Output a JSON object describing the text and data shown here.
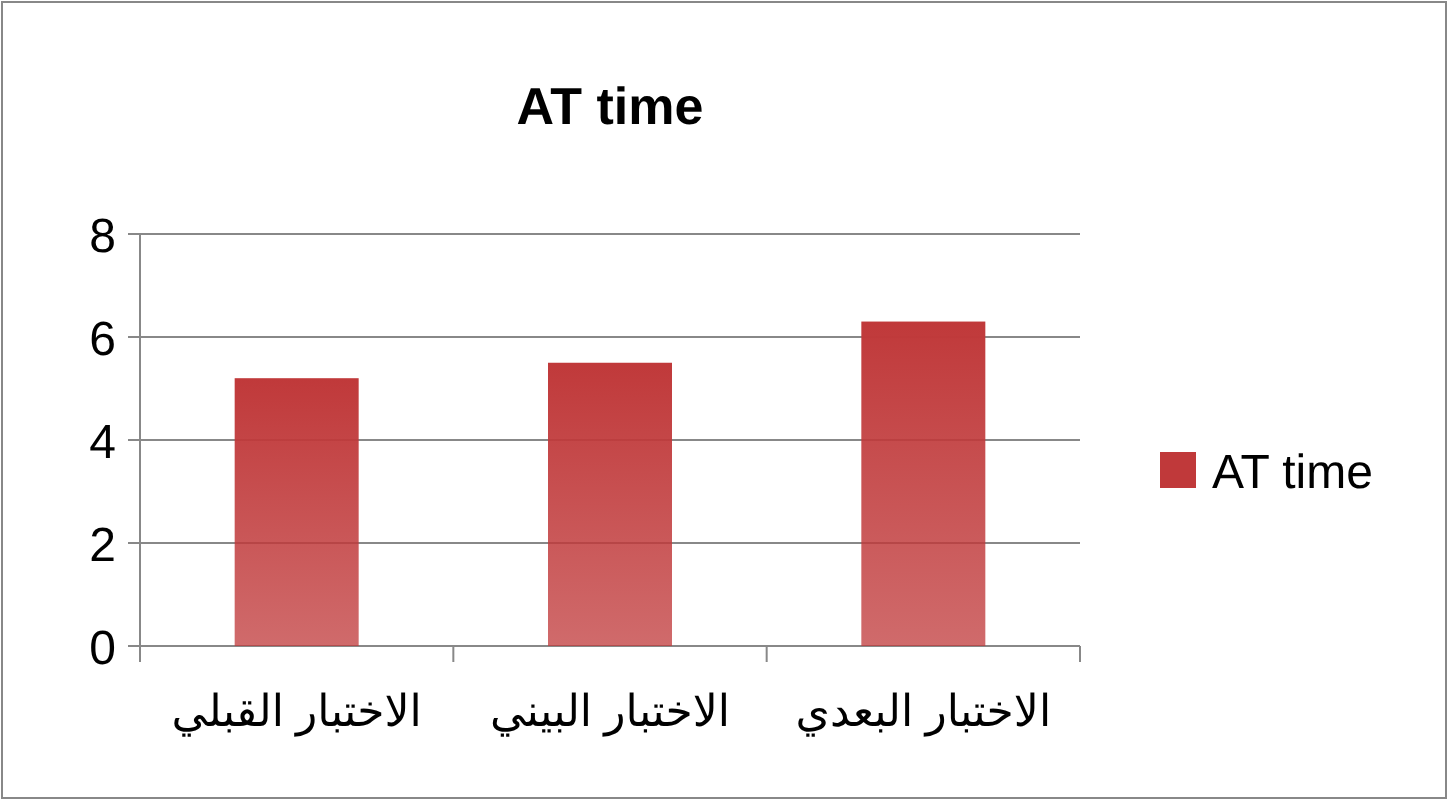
{
  "chart_data": {
    "type": "bar",
    "title": "AT time",
    "categories": [
      "الاختبار القبلي",
      "الاختبار البيني",
      "الاختبار البعدي"
    ],
    "series": [
      {
        "name": "AT time",
        "color": "#c0393a",
        "values": [
          5.2,
          5.5,
          6.3
        ]
      }
    ],
    "ylim": [
      0,
      8
    ],
    "yticks": [
      0,
      2,
      4,
      6,
      8
    ],
    "grid": "y",
    "legend": "right"
  }
}
